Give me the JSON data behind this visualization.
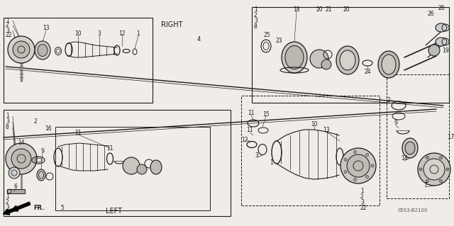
{
  "bg_color": "#f0ede8",
  "line_color": "#1a1a1a",
  "fig_width": 6.4,
  "fig_height": 3.19,
  "diagram_code": "S5S3-B2100",
  "right_label": "RIGHT",
  "left_label": "LEFT",
  "fr_label": "FR.",
  "part4": "4",
  "part17": "17"
}
